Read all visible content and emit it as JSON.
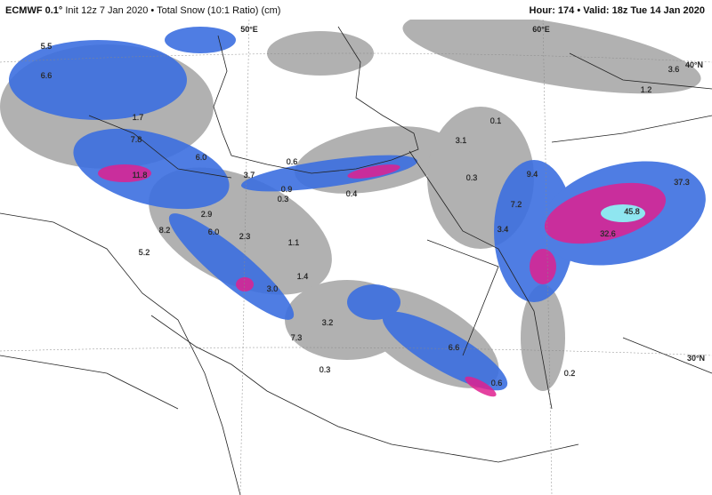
{
  "header": {
    "model": "ECMWF 0.1°",
    "details": "Init 12z 7 Jan 2020 • Total Snow (10:1 Ratio) (cm)",
    "valid": "Hour: 174 • Valid: 18z Tue 14 Jan 2020"
  },
  "grid_labels": [
    "50°E",
    "60°E",
    "40°N",
    "30°N"
  ],
  "snow_labels": [
    "5.5",
    "6.6",
    "1.7",
    "7.8",
    "11.8",
    "6.0",
    "0.6",
    "3.7",
    "0.9",
    "0.3",
    "0.4",
    "8.2",
    "2.9",
    "6.0",
    "2.3",
    "1.1",
    "5.2",
    "1.4",
    "3.0",
    "7.3",
    "3.2",
    "0.3",
    "6.6",
    "0.6",
    "0.2",
    "0.1",
    "3.1",
    "0.3",
    "9.4",
    "7.2",
    "37.3",
    "45.8",
    "32.6",
    "1.2",
    "3.6",
    "3.4"
  ]
}
